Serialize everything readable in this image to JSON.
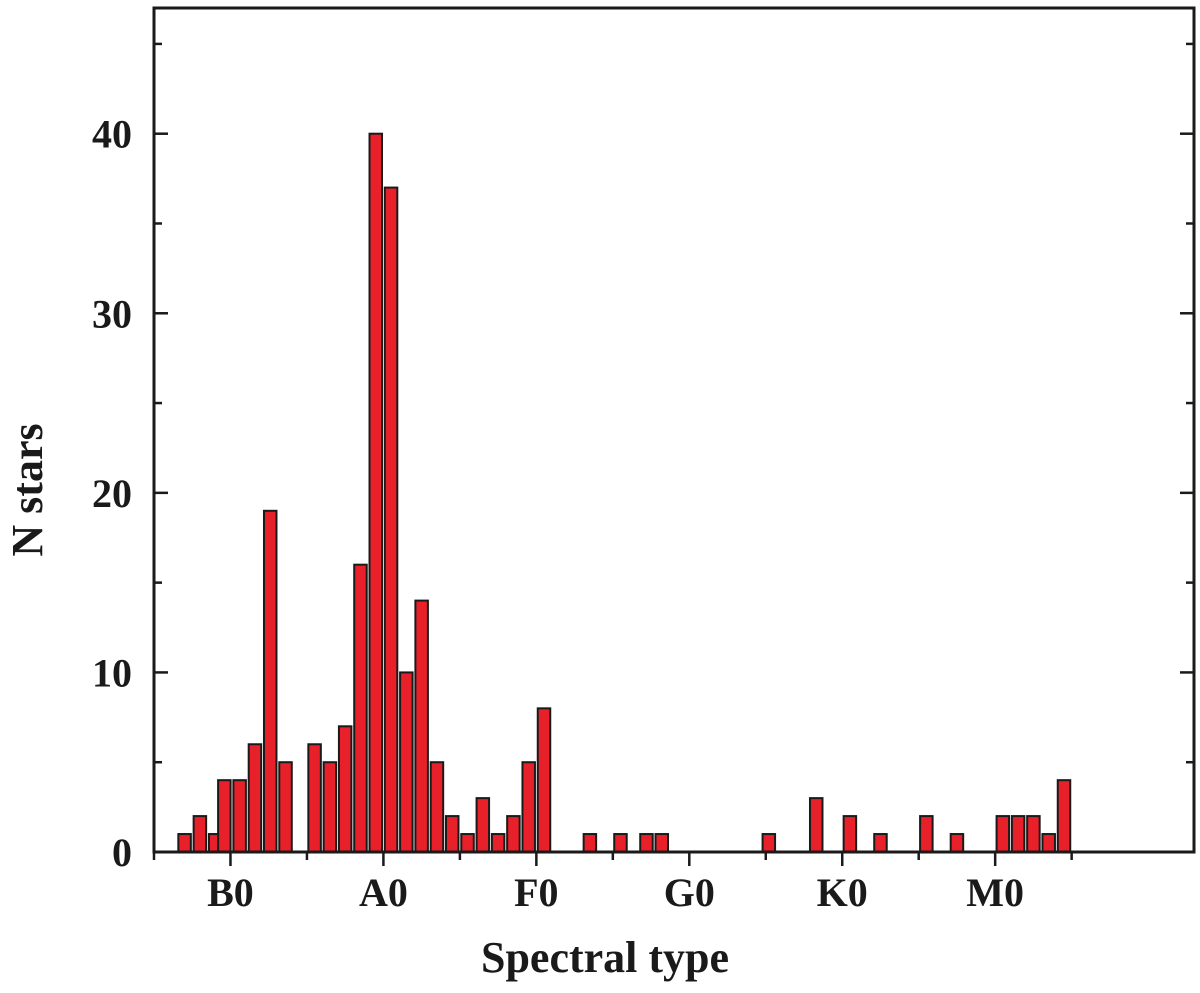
{
  "chart_data": {
    "type": "bar",
    "xlabel": "Spectral type",
    "ylabel": "N stars",
    "ylim": [
      0,
      47
    ],
    "xlim": [
      -5,
      63
    ],
    "yticks": [
      0,
      10,
      20,
      30,
      40
    ],
    "yminor": [
      5,
      15,
      25,
      35,
      45
    ],
    "xticks": [
      {
        "label": "B0",
        "x": 0
      },
      {
        "label": "A0",
        "x": 10
      },
      {
        "label": "F0",
        "x": 20
      },
      {
        "label": "G0",
        "x": 30
      },
      {
        "label": "K0",
        "x": 40
      },
      {
        "label": "M0",
        "x": 50
      }
    ],
    "xminor": [
      -5,
      5,
      15,
      25,
      35,
      45,
      55
    ],
    "grid": false,
    "color": "#e8202a",
    "bars": [
      {
        "x": -3,
        "value": 1
      },
      {
        "x": -2,
        "value": 2
      },
      {
        "x": -1,
        "value": 1
      },
      {
        "x": -0.4,
        "value": 4
      },
      {
        "x": 0.6,
        "value": 4
      },
      {
        "x": 1.6,
        "value": 6
      },
      {
        "x": 2.6,
        "value": 19
      },
      {
        "x": 3.6,
        "value": 5
      },
      {
        "x": 5.5,
        "value": 6
      },
      {
        "x": 6.5,
        "value": 5
      },
      {
        "x": 7.5,
        "value": 7
      },
      {
        "x": 8.5,
        "value": 16
      },
      {
        "x": 9.5,
        "value": 40
      },
      {
        "x": 10.5,
        "value": 37
      },
      {
        "x": 11.5,
        "value": 10
      },
      {
        "x": 12.5,
        "value": 14
      },
      {
        "x": 13.5,
        "value": 5
      },
      {
        "x": 14.5,
        "value": 2
      },
      {
        "x": 15.5,
        "value": 1
      },
      {
        "x": 16.5,
        "value": 3
      },
      {
        "x": 17.5,
        "value": 1
      },
      {
        "x": 18.5,
        "value": 2
      },
      {
        "x": 19.5,
        "value": 5
      },
      {
        "x": 20.5,
        "value": 8
      },
      {
        "x": 23.5,
        "value": 1
      },
      {
        "x": 25.5,
        "value": 1
      },
      {
        "x": 27.2,
        "value": 1
      },
      {
        "x": 28.2,
        "value": 1
      },
      {
        "x": 35.2,
        "value": 1
      },
      {
        "x": 38.3,
        "value": 3
      },
      {
        "x": 40.5,
        "value": 2
      },
      {
        "x": 42.5,
        "value": 1
      },
      {
        "x": 45.5,
        "value": 2
      },
      {
        "x": 47.5,
        "value": 1
      },
      {
        "x": 50.5,
        "value": 2
      },
      {
        "x": 51.5,
        "value": 2
      },
      {
        "x": 52.5,
        "value": 2
      },
      {
        "x": 53.5,
        "value": 1
      },
      {
        "x": 54.5,
        "value": 4
      }
    ]
  }
}
